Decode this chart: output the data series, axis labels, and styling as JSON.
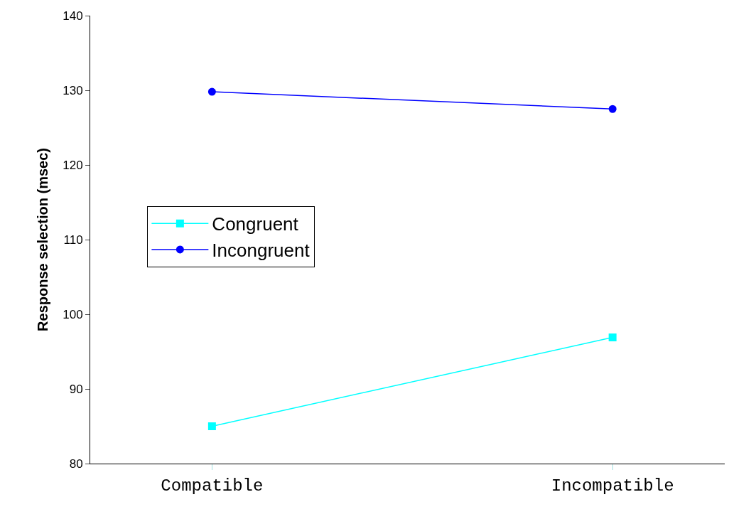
{
  "chart_data": {
    "type": "line",
    "ylabel": "Response selection (msec)",
    "categories": [
      "Compatible",
      "Incompatible"
    ],
    "series": [
      {
        "name": "Congruent",
        "color": "#00ffff",
        "values": [
          85,
          96.9
        ],
        "marker": "square"
      },
      {
        "name": "Incongruent",
        "color": "#0000ff",
        "values": [
          129.8,
          127.5
        ],
        "marker": "circle"
      }
    ],
    "ylim": [
      80,
      140
    ],
    "yticks": [
      80,
      90,
      100,
      110,
      120,
      130,
      140
    ],
    "legend": "left",
    "line_style": "solid"
  }
}
